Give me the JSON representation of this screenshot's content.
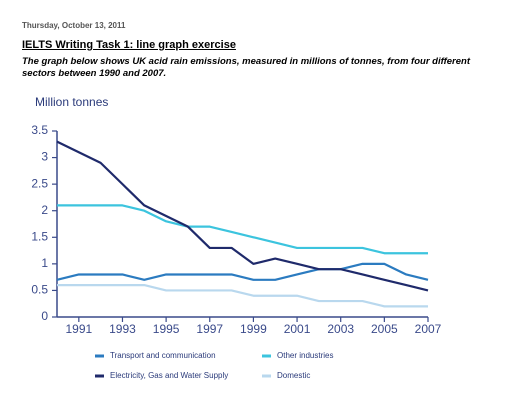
{
  "header": {
    "date": "Thursday, October 13, 2011",
    "title": "IELTS Writing Task 1: line graph exercise",
    "subtitle": "The graph below shows UK acid rain emissions, measured in millions of tonnes, from four different sectors between 1990 and 2007."
  },
  "chart_data": {
    "type": "line",
    "y_label": "Million tonnes",
    "x": [
      1990,
      1991,
      1992,
      1993,
      1994,
      1995,
      1996,
      1997,
      1998,
      1999,
      2000,
      2001,
      2002,
      2003,
      2004,
      2005,
      2006,
      2007
    ],
    "xlim": [
      1990,
      2007
    ],
    "xticks": [
      1991,
      1993,
      1995,
      1997,
      1999,
      2001,
      2003,
      2005,
      2007
    ],
    "ylim": [
      0,
      3.5
    ],
    "yticks": [
      0,
      0.5,
      1,
      1.5,
      2,
      2.5,
      3,
      3.5
    ],
    "legend": "bottom",
    "series": [
      {
        "name": "Transport and communication",
        "color": "#2b7bc0",
        "values": [
          0.7,
          0.8,
          0.8,
          0.8,
          0.7,
          0.8,
          0.8,
          0.8,
          0.8,
          0.7,
          0.7,
          0.8,
          0.9,
          0.9,
          1.0,
          1.0,
          0.8,
          0.7
        ]
      },
      {
        "name": "Other industries",
        "color": "#3cc4de",
        "values": [
          2.1,
          2.1,
          2.1,
          2.1,
          2.0,
          1.8,
          1.7,
          1.7,
          1.6,
          1.5,
          1.4,
          1.3,
          1.3,
          1.3,
          1.3,
          1.2,
          1.2,
          1.2
        ]
      },
      {
        "name": "Electricity, Gas and Water Supply",
        "color": "#1f2a6b",
        "values": [
          3.3,
          3.1,
          2.9,
          2.5,
          2.1,
          1.9,
          1.7,
          1.3,
          1.3,
          1.0,
          1.1,
          1.0,
          0.9,
          0.9,
          0.8,
          0.7,
          0.6,
          0.5
        ]
      },
      {
        "name": "Domestic",
        "color": "#b9d8ee",
        "values": [
          0.6,
          0.6,
          0.6,
          0.6,
          0.6,
          0.5,
          0.5,
          0.5,
          0.5,
          0.4,
          0.4,
          0.4,
          0.3,
          0.3,
          0.3,
          0.2,
          0.2,
          0.2
        ]
      }
    ]
  }
}
